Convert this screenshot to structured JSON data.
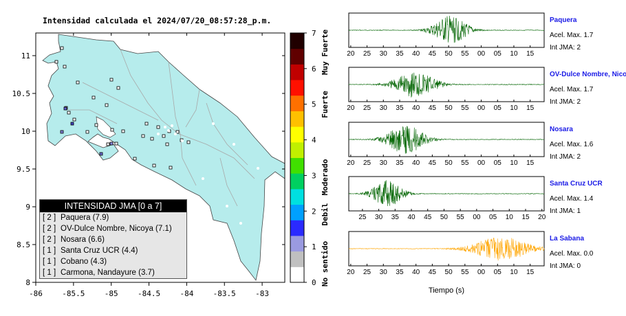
{
  "map": {
    "title": "Intensidad calculada el 2024/07/20_08:57:28_p.m.",
    "x_ticks": [
      "-86",
      "-85.5",
      "-85",
      "-84.5",
      "-84",
      "-83.5",
      "-83"
    ],
    "y_ticks": [
      "11",
      "10.5",
      "10",
      "9.5",
      "9",
      "8.5",
      "8"
    ],
    "xlim": [
      -86,
      -82.7
    ],
    "ylim": [
      8,
      11.3
    ],
    "land_color": "#b6ecec",
    "legend": {
      "title": "INTENSIDAD JMA [0 a 7]",
      "items": [
        {
          "level": "[ 2 ]",
          "name": "Paquera (7.9)"
        },
        {
          "level": "[ 2 ]",
          "name": "OV-Dulce Nombre, Nicoya (7.1)"
        },
        {
          "level": "[ 2 ]",
          "name": "Nosara (6.6)"
        },
        {
          "level": "[ 1 ]",
          "name": "Santa Cruz UCR (4.4)"
        },
        {
          "level": "[ 1 ]",
          "name": "Cobano (4.3)"
        },
        {
          "level": "[ 1 ]",
          "name": "Carmona, Nandayure (3.7)"
        }
      ]
    }
  },
  "colorbar": {
    "ticks": [
      "7",
      "6",
      "5",
      "4",
      "3",
      "2",
      "1",
      "0"
    ],
    "labels": [
      "Muy Fuerte",
      "Fuerte",
      "Moderado",
      "Debil",
      "No sentido"
    ],
    "colors": [
      "#ffffff",
      "#c0c0c0",
      "#9a9ae0",
      "#2a2aff",
      "#00a0ff",
      "#00e0e0",
      "#00d060",
      "#40e000",
      "#c0f000",
      "#ffff00",
      "#ffc000",
      "#ff7000",
      "#ff1000",
      "#c00000",
      "#600000",
      "#200000"
    ]
  },
  "waveforms": {
    "xlabel": "Tiempo (s)",
    "traces": [
      {
        "name": "Paquera",
        "acel": "Acel. Max. 1.7",
        "int": "Int JMA: 2",
        "color": "#006400",
        "ticks": [
          "20",
          "25",
          "30",
          "35",
          "40",
          "45",
          "50",
          "55",
          "00",
          "05",
          "10",
          "15"
        ],
        "first_tick_frac": 0.01,
        "tick_step_frac": 0.0835,
        "peak_frac": 0.52,
        "spread": 0.09,
        "amp": 0.9
      },
      {
        "name": "OV-Dulce Nombre, Nicoya",
        "acel": "Acel. Max. 1.7",
        "int": "Int JMA: 2",
        "color": "#006400",
        "ticks": [
          "20",
          "25",
          "30",
          "35",
          "40",
          "45",
          "50",
          "55",
          "00",
          "05",
          "10",
          "15"
        ],
        "first_tick_frac": 0.01,
        "tick_step_frac": 0.0835,
        "peak_frac": 0.34,
        "spread": 0.11,
        "amp": 0.85
      },
      {
        "name": "Nosara",
        "acel": "Acel. Max. 1.6",
        "int": "Int JMA: 2",
        "color": "#006400",
        "ticks": [
          "20",
          "25",
          "30",
          "35",
          "40",
          "45",
          "50",
          "55",
          "00",
          "05",
          "10",
          "15"
        ],
        "first_tick_frac": 0.01,
        "tick_step_frac": 0.0835,
        "peak_frac": 0.29,
        "spread": 0.1,
        "amp": 0.9
      },
      {
        "name": "Santa Cruz UCR",
        "acel": "Acel. Max. 1.4",
        "int": "Int JMA: 1",
        "color": "#006400",
        "ticks": [
          "25",
          "30",
          "35",
          "40",
          "45",
          "50",
          "55",
          "00",
          "05",
          "10",
          "15",
          "20"
        ],
        "first_tick_frac": 0.07,
        "tick_step_frac": 0.0835,
        "peak_frac": 0.2,
        "spread": 0.08,
        "amp": 0.85
      },
      {
        "name": "La Sabana",
        "acel": "Acel. Max. 0.0",
        "int": "Int JMA: 0",
        "color": "#ffa500",
        "ticks": [
          "20",
          "25",
          "30",
          "35",
          "40",
          "45",
          "50",
          "55",
          "00",
          "05",
          "10",
          "15"
        ],
        "first_tick_frac": 0.01,
        "tick_step_frac": 0.0835,
        "peak_frac": 0.78,
        "spread": 0.15,
        "amp": 0.75
      }
    ]
  }
}
